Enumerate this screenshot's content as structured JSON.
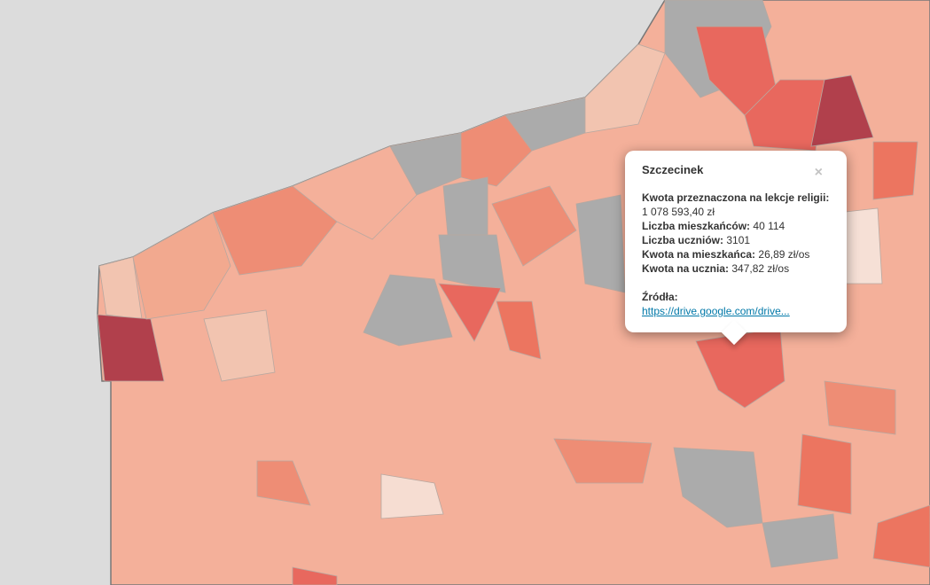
{
  "popup": {
    "title": "Szczecinek",
    "close": "×",
    "fields": [
      {
        "label": "Kwota przeznaczona na lekcje religii:",
        "value": "1 078 593,40 zł"
      },
      {
        "label": "Liczba mieszkańców:",
        "value": "40 114"
      },
      {
        "label": "Liczba uczniów:",
        "value": "3101"
      },
      {
        "label": "Kwota na mieszkańca:",
        "value": "26,89 zł/os"
      },
      {
        "label": "Kwota na ucznia:",
        "value": "347,82 zł/os"
      }
    ],
    "sources_label": "Źródła:",
    "link": "https://drive.google.com/drive..."
  }
}
